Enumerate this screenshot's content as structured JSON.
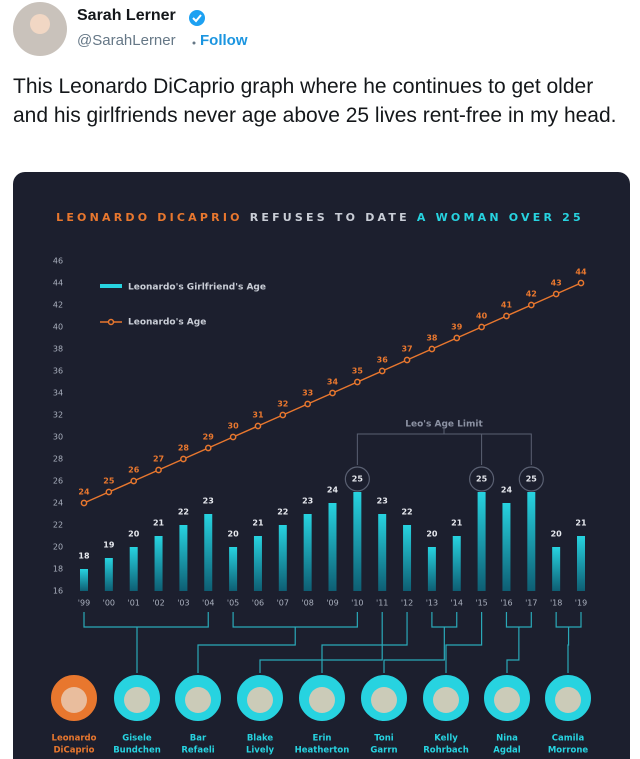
{
  "tweet": {
    "author": "Sarah Lerner",
    "handle": "@SarahLerner",
    "follow": "Follow",
    "text": "This Leonardo DiCaprio graph where he continues to get older and his girlfriends never age above 25 lives rent-free in my head."
  },
  "chart_data": {
    "type": "bar-line",
    "title": [
      "LEONARDO DICAPRIO",
      "REFUSES TO DATE",
      "A WOMAN OVER 25"
    ],
    "categories": [
      "'99",
      "'00",
      "'01",
      "'02",
      "'03",
      "'04",
      "'05",
      "'06",
      "'07",
      "'08",
      "'09",
      "'10",
      "'11",
      "'12",
      "'13",
      "'14",
      "'15",
      "'16",
      "'17",
      "'18",
      "'19"
    ],
    "series": [
      {
        "name": "Leonardo's Girlfriend's Age",
        "color": "#27d3e0",
        "values": [
          18,
          19,
          20,
          21,
          22,
          23,
          20,
          21,
          22,
          23,
          24,
          25,
          23,
          22,
          20,
          21,
          25,
          24,
          25,
          20,
          21
        ]
      },
      {
        "name": "Leonardo's Age",
        "color": "#e8772e",
        "values": [
          24,
          25,
          26,
          27,
          28,
          29,
          30,
          31,
          32,
          33,
          34,
          35,
          36,
          37,
          38,
          39,
          40,
          41,
          42,
          43,
          44
        ]
      }
    ],
    "ylim": [
      16,
      46
    ],
    "yticks": [
      16,
      18,
      20,
      22,
      24,
      26,
      28,
      30,
      32,
      34,
      36,
      38,
      40,
      42,
      44,
      46
    ],
    "annotation": "Leo's Age Limit",
    "people": [
      [
        "Leonardo",
        "DiCaprio"
      ],
      [
        "Gisele",
        "Bundchen"
      ],
      [
        "Bar",
        "Refaeli"
      ],
      [
        "Blake",
        "Lively"
      ],
      [
        "Erin",
        "Heatherton"
      ],
      [
        "Toni",
        "Garrn"
      ],
      [
        "Kelly",
        "Rohrbach"
      ],
      [
        "Nina",
        "Agdal"
      ],
      [
        "Camila",
        "Morrone"
      ]
    ]
  }
}
